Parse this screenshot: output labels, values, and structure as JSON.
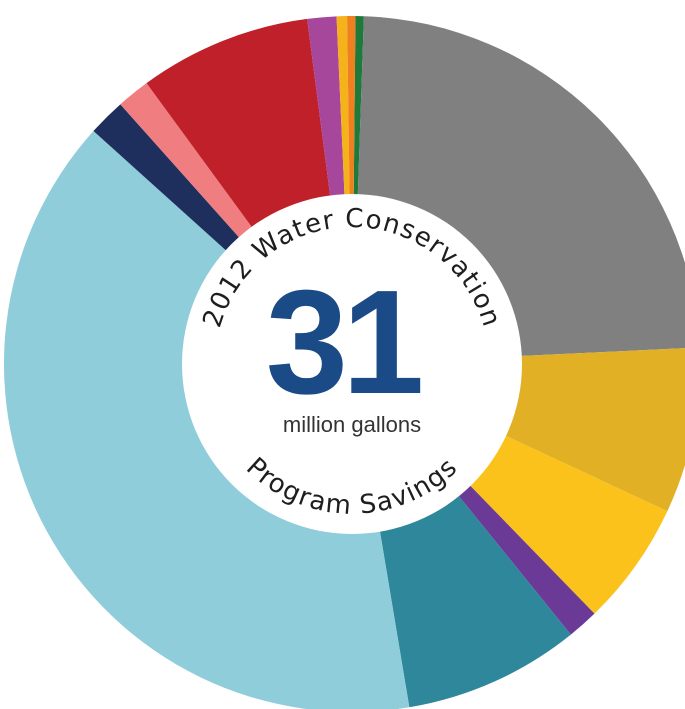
{
  "chart_data": {
    "type": "pie",
    "title_top": "2012 Water Conservation",
    "title_bottom": "Program Savings",
    "center_value": "31",
    "center_unit": "million gallons",
    "slices": [
      {
        "value": 0.4,
        "color": "#1e7a3a"
      },
      {
        "value": 24.6,
        "color": "#808080"
      },
      {
        "value": 8.0,
        "color": "#e1b024"
      },
      {
        "value": 6.0,
        "color": "#fbc21b"
      },
      {
        "value": 1.5,
        "color": "#6b3a96"
      },
      {
        "value": 8.5,
        "color": "#2f879c"
      },
      {
        "value": 40.8,
        "color": "#8ecdd9"
      },
      {
        "value": 1.8,
        "color": "#1e2f5e"
      },
      {
        "value": 1.6,
        "color": "#f07d80"
      },
      {
        "value": 8.3,
        "color": "#bf2029"
      },
      {
        "value": 1.4,
        "color": "#a6479b"
      },
      {
        "value": 0.5,
        "color": "#f6b21a"
      },
      {
        "value": 0.4,
        "color": "#f0801f"
      }
    ]
  }
}
